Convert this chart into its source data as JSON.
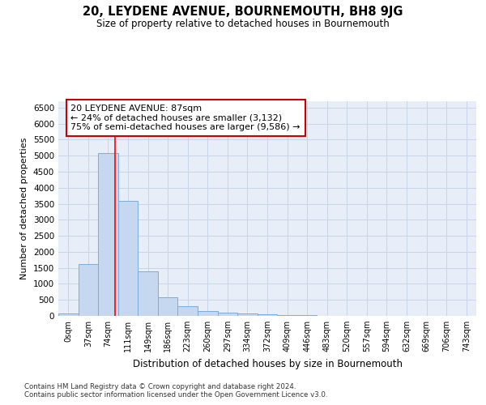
{
  "title": "20, LEYDENE AVENUE, BOURNEMOUTH, BH8 9JG",
  "subtitle": "Size of property relative to detached houses in Bournemouth",
  "xlabel": "Distribution of detached houses by size in Bournemouth",
  "ylabel": "Number of detached properties",
  "bin_labels": [
    "0sqm",
    "37sqm",
    "74sqm",
    "111sqm",
    "149sqm",
    "186sqm",
    "223sqm",
    "260sqm",
    "297sqm",
    "334sqm",
    "372sqm",
    "409sqm",
    "446sqm",
    "483sqm",
    "520sqm",
    "557sqm",
    "594sqm",
    "632sqm",
    "669sqm",
    "706sqm",
    "743sqm"
  ],
  "bar_values": [
    75,
    1630,
    5080,
    3600,
    1400,
    580,
    295,
    150,
    90,
    70,
    60,
    30,
    30,
    0,
    0,
    0,
    0,
    0,
    0,
    0,
    0
  ],
  "bar_color": "#c5d8f0",
  "bar_edge_color": "#7aaddc",
  "grid_color": "#c8d4e8",
  "background_color": "#e8eef8",
  "red_line_x": 2.35,
  "annotation_line1": "20 LEYDENE AVENUE: 87sqm",
  "annotation_line2": "← 24% of detached houses are smaller (3,132)",
  "annotation_line3": "75% of semi-detached houses are larger (9,586) →",
  "annotation_box_color": "#ffffff",
  "annotation_box_edge": "#cc0000",
  "ylim": [
    0,
    6700
  ],
  "yticks": [
    0,
    500,
    1000,
    1500,
    2000,
    2500,
    3000,
    3500,
    4000,
    4500,
    5000,
    5500,
    6000,
    6500
  ],
  "footnote1": "Contains HM Land Registry data © Crown copyright and database right 2024.",
  "footnote2": "Contains public sector information licensed under the Open Government Licence v3.0."
}
